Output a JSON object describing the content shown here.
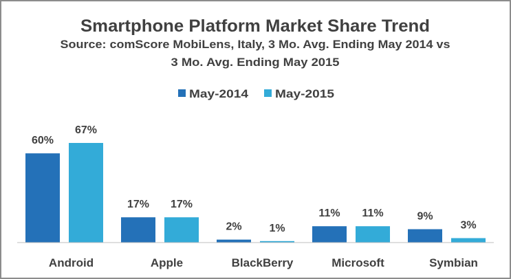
{
  "chart_data": {
    "type": "bar",
    "title": "Smartphone Platform Market Share Trend",
    "subtitle_lines": [
      "Source: comScore MobiLens, Italy, 3 Mo. Avg. Ending May 2014 vs",
      "3 Mo. Avg. Ending May 2015"
    ],
    "categories": [
      "Android",
      "Apple",
      "BlackBerry",
      "Microsoft",
      "Symbian"
    ],
    "series": [
      {
        "name": "May-2014",
        "values": [
          60,
          17,
          2,
          11,
          9
        ],
        "labels": [
          "60%",
          "17%",
          "2%",
          "11%",
          "9%"
        ],
        "color": "#2471b8"
      },
      {
        "name": "May-2015",
        "values": [
          67,
          17,
          1,
          11,
          3
        ],
        "labels": [
          "67%",
          "17%",
          "1%",
          "11%",
          "3%"
        ],
        "color": "#33abd8"
      }
    ],
    "ylim": [
      0,
      67
    ],
    "grid": false,
    "y_axis_shown": false,
    "legend_position": "top",
    "xlabel": "",
    "ylabel": ""
  }
}
